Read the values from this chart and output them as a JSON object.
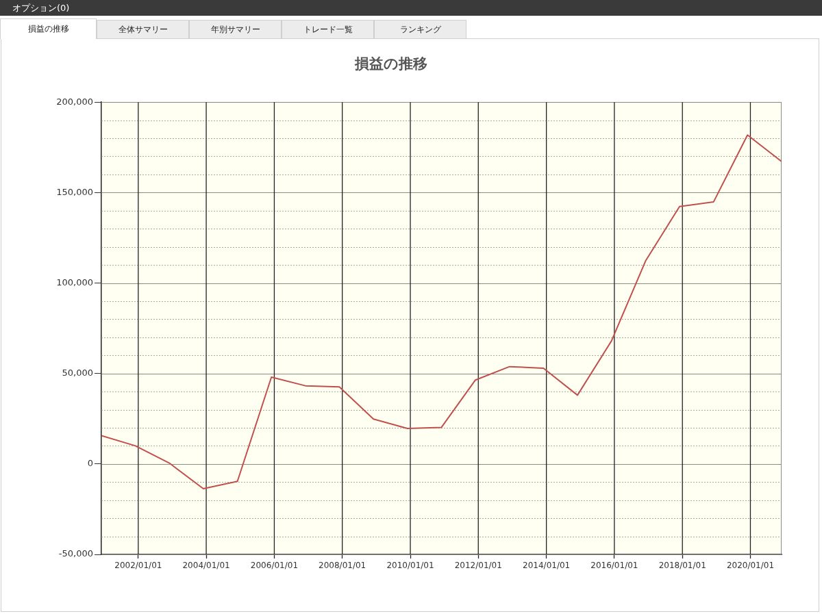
{
  "chart_data": {
    "type": "line",
    "title": "損益の推移",
    "annotations": [
      "オプション(0)",
      "損益の推移",
      "全体サマリー",
      "年別サマリー",
      "トレード一覧",
      "ランキング"
    ],
    "x": [
      "2000-12",
      "2001-12",
      "2002-12",
      "2003-12",
      "2004-12",
      "2005-12",
      "2006-12",
      "2007-12",
      "2008-12",
      "2009-12",
      "2010-12",
      "2011-12",
      "2012-12",
      "2013-12",
      "2014-12",
      "2015-12",
      "2016-12",
      "2017-12",
      "2018-12",
      "2019-12",
      "2020-12"
    ],
    "series": [
      {
        "color": "#c0504d",
        "values": [
          15700,
          10000,
          500,
          -13700,
          -9600,
          48000,
          43200,
          42600,
          24800,
          19600,
          20200,
          46400,
          53800,
          52900,
          38000,
          68000,
          112200,
          142300,
          144800,
          181800,
          167200
        ]
      }
    ],
    "xlim": [
      "2000-12",
      "2020-12"
    ],
    "xticks": [
      {
        "value": "2002-01-01",
        "label": "2002/01/01"
      },
      {
        "value": "2004-01-01",
        "label": "2004/01/01"
      },
      {
        "value": "2006-01-01",
        "label": "2006/01/01"
      },
      {
        "value": "2008-01-01",
        "label": "2008/01/01"
      },
      {
        "value": "2010-01-01",
        "label": "2010/01/01"
      },
      {
        "value": "2012-01-01",
        "label": "2012/01/01"
      },
      {
        "value": "2014-01-01",
        "label": "2014/01/01"
      },
      {
        "value": "2016-01-01",
        "label": "2016/01/01"
      },
      {
        "value": "2018-01-01",
        "label": "2018/01/01"
      },
      {
        "value": "2020-01-01",
        "label": "2020/01/01"
      }
    ],
    "ylim": [
      -50000,
      200000
    ],
    "yticks": [
      {
        "value": -50000,
        "label": "-50,000"
      },
      {
        "value": -40000,
        "label": null
      },
      {
        "value": -30000,
        "label": null
      },
      {
        "value": -20000,
        "label": null
      },
      {
        "value": -10000,
        "label": null
      },
      0,
      {
        "value": 10000,
        "label": null
      },
      {
        "value": 20000,
        "label": null
      },
      {
        "value": 30000,
        "label": null
      },
      {
        "value": 40000,
        "label": null
      },
      {
        "value": 50000,
        "label": "50,000"
      },
      {
        "value": 60000,
        "label": null
      },
      {
        "value": 70000,
        "label": null
      },
      {
        "value": 80000,
        "label": null
      },
      {
        "value": 90000,
        "label": null
      },
      {
        "value": 100000,
        "label": "100,000"
      },
      {
        "value": 110000,
        "label": null
      },
      {
        "value": 120000,
        "label": null
      },
      {
        "value": 130000,
        "label": null
      },
      {
        "value": 140000,
        "label": null
      },
      {
        "value": 150000,
        "label": "150,000"
      },
      {
        "value": 160000,
        "label": null
      },
      {
        "value": 170000,
        "label": null
      },
      {
        "value": 180000,
        "label": null
      },
      {
        "value": 190000,
        "label": null
      },
      {
        "value": 200000,
        "label": "200,000"
      }
    ],
    "grid": true
  }
}
